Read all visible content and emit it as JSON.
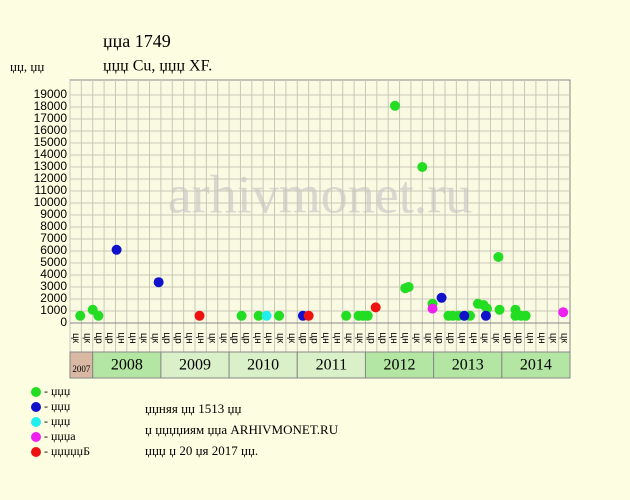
{
  "chart_data": {
    "type": "scatter",
    "title": "џџа 1749",
    "subtitle": "џџџ Cu, џџџ XF.",
    "y_label": "џџ, џџ",
    "watermark": "arhivmonet.ru",
    "categories": [
      "цк",
      "цк",
      "цр",
      "цр",
      "цн",
      "цн",
      "цк",
      "цк",
      "цр",
      "цр",
      "цн",
      "цн",
      "цк",
      "цк",
      "цр",
      "цр",
      "цн",
      "цн",
      "цк",
      "цк",
      "цр",
      "цр",
      "цн",
      "цн",
      "цк",
      "цк",
      "цр",
      "цр",
      "цн",
      "цн",
      "цк",
      "цк",
      "цр",
      "цр",
      "цн",
      "цн",
      "цк",
      "цк",
      "цр",
      "цр",
      "цн",
      "цн",
      "цк",
      "цк"
    ],
    "years": [
      "2007",
      "2008",
      "2009",
      "2010",
      "2011",
      "2012",
      "2013",
      "2014"
    ],
    "year_columns": [
      2,
      6,
      6,
      6,
      6,
      6,
      6,
      6
    ],
    "year_colors": [
      "#d9b9a3",
      "#b3e6a3",
      "#d9f0c9",
      "#d9f0c9",
      "#d9f0c9",
      "#b3e6a3",
      "#b3e6a3",
      "#b3e6a3"
    ],
    "xlim": [
      0,
      44
    ],
    "ylim": [
      0,
      20250
    ],
    "yticks": [
      0,
      1000,
      2000,
      3000,
      4000,
      5000,
      6000,
      7000,
      8000,
      9000,
      10000,
      11000,
      12000,
      13000,
      14000,
      15000,
      16000,
      17000,
      18000,
      19000
    ],
    "grid": true,
    "series": [
      {
        "name": "- џџџ",
        "color": "#22dd22",
        "x": [
          0.9,
          2.0,
          2.5,
          15.1,
          16.6,
          18.4,
          24.3,
          25.4,
          25.8,
          26.2,
          28.6,
          29.5,
          29.8,
          31.0,
          31.9,
          33.3,
          33.7,
          34.2,
          35.2,
          35.9,
          36.4,
          36.7,
          37.7,
          37.8,
          39.2,
          39.2,
          39.7,
          40.1
        ],
        "values": [
          600,
          1100,
          600,
          600,
          600,
          600,
          600,
          600,
          600,
          600,
          18100,
          2900,
          3000,
          13000,
          1600,
          600,
          600,
          600,
          600,
          1600,
          1500,
          1200,
          5500,
          1100,
          1100,
          600,
          600,
          600
        ]
      },
      {
        "name": "- џџџ",
        "color": "#1111cc",
        "x": [
          4.1,
          7.8,
          20.5,
          32.7,
          34.7,
          36.6
        ],
        "values": [
          6100,
          3400,
          600,
          2100,
          600,
          600
        ]
      },
      {
        "name": "- џџџ",
        "color": "#22eeee",
        "x": [
          17.3
        ],
        "values": [
          600
        ]
      },
      {
        "name": "- џџџа",
        "color": "#ee22ee",
        "x": [
          31.9,
          43.4
        ],
        "values": [
          1200,
          900
        ]
      },
      {
        "name": "- џџџџџБ",
        "color": "#ee1111",
        "x": [
          11.4,
          21.0,
          26.9
        ],
        "values": [
          600,
          600,
          1300
        ]
      }
    ],
    "notes": [
      "џџняя џџ 1513 џџ",
      "џ џџџџиям џџа ARHIVMONET.RU",
      "џџџ џ 20 џя 2017 џџ."
    ]
  }
}
